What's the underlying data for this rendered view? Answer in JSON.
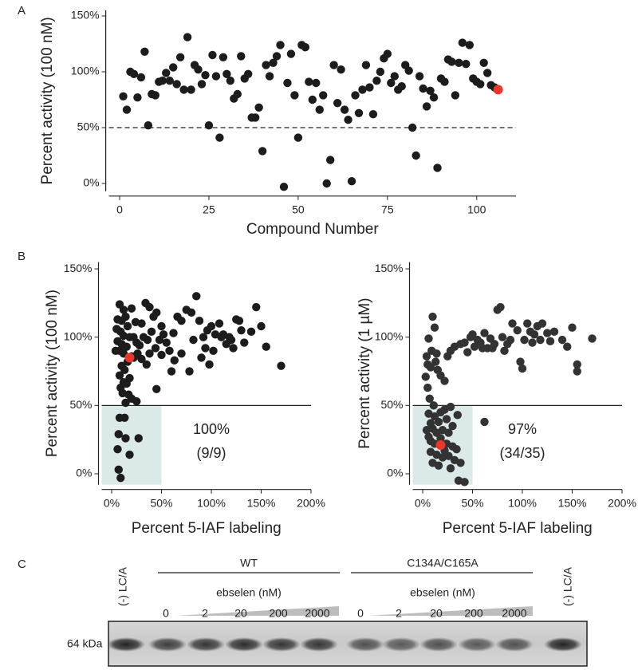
{
  "panel_labels": [
    "A",
    "B",
    "C"
  ],
  "chart_data": [
    {
      "type": "scatter",
      "ylabel": "Percent activity (100 nM)",
      "xlabel": "Compound Number",
      "xlim": [
        -3,
        111
      ],
      "ylim": [
        -7,
        155
      ],
      "xticks": [
        0,
        25,
        50,
        75,
        100
      ],
      "yticks": [
        {
          "value": 0,
          "label": "0%"
        },
        {
          "value": 50,
          "label": "50%"
        },
        {
          "value": 100,
          "label": "100%"
        },
        {
          "value": 150,
          "label": "150%"
        }
      ],
      "reference_line": {
        "y": 50,
        "style": "dashed"
      },
      "series": [
        {
          "color": "#1c1c1c",
          "x": [
            1,
            2,
            3,
            4,
            5,
            6,
            7,
            8,
            9,
            10,
            11,
            12,
            13,
            14,
            15,
            16,
            17,
            18,
            19,
            20,
            21,
            22,
            23,
            24,
            25,
            26,
            27,
            28,
            29,
            30,
            31,
            32,
            33,
            34,
            35,
            36,
            37,
            38,
            39,
            40,
            41,
            42,
            43,
            44,
            45,
            46,
            47,
            48,
            49,
            50,
            51,
            52,
            53,
            54,
            55,
            56,
            57,
            58,
            59,
            60,
            61,
            62,
            63,
            64,
            65,
            66,
            67,
            68,
            69,
            70,
            71,
            72,
            73,
            74,
            75,
            76,
            77,
            78,
            79,
            80,
            81,
            82,
            83,
            84,
            85,
            86,
            87,
            88,
            89,
            90,
            91,
            92,
            93,
            94,
            95,
            96,
            97,
            98,
            99,
            100,
            101,
            102,
            103,
            104,
            105
          ],
          "y": [
            78,
            66,
            100,
            98,
            77,
            95,
            118,
            52,
            80,
            79,
            91,
            92,
            99,
            92,
            104,
            89,
            113,
            84,
            131,
            84,
            106,
            102,
            89,
            97,
            52,
            115,
            96,
            41,
            113,
            98,
            92,
            76,
            80,
            114,
            94,
            98,
            59,
            59,
            68,
            29,
            106,
            96,
            108,
            114,
            124,
            -3,
            90,
            116,
            79,
            41,
            124,
            122,
            91,
            75,
            90,
            66,
            79,
            0,
            21,
            106,
            72,
            102,
            66,
            57,
            2,
            79,
            63,
            84,
            106,
            86,
            62,
            92,
            100,
            112,
            116,
            90,
            96,
            84,
            87,
            106,
            101,
            50,
            25,
            96,
            85,
            69,
            83,
            77,
            14,
            94,
            91,
            111,
            109,
            79,
            108,
            126,
            107,
            124,
            94,
            91,
            89,
            108,
            99,
            88,
            86
          ]
        },
        {
          "color": "#e8372c",
          "x": [
            106
          ],
          "y": [
            84
          ]
        }
      ]
    },
    {
      "type": "scatter",
      "ylabel": "Percent activity (100 nM)",
      "xlabel": "Percent 5-IAF labeling",
      "xlim": [
        -10,
        200
      ],
      "ylim": [
        -8,
        155
      ],
      "xticks": [
        {
          "value": 0,
          "label": "0%"
        },
        {
          "value": 50,
          "label": "50%"
        },
        {
          "value": 100,
          "label": "100%"
        },
        {
          "value": 150,
          "label": "150%"
        },
        {
          "value": 200,
          "label": "200%"
        }
      ],
      "yticks": [
        {
          "value": 0,
          "label": "0%"
        },
        {
          "value": 50,
          "label": "50%"
        },
        {
          "value": 100,
          "label": "100%"
        },
        {
          "value": 150,
          "label": "150%"
        }
      ],
      "reference_line": {
        "y": 50,
        "style": "solid"
      },
      "shaded_region": {
        "x_max": 50,
        "y_max": 50,
        "color": "#dbe9e9"
      },
      "annotation": [
        "100%",
        "(9/9)"
      ],
      "series": [
        {
          "color": "#1c1c1c",
          "x": [
            8,
            13,
            7,
            14,
            27,
            6,
            18,
            7,
            9,
            8,
            12,
            6,
            10,
            14,
            20,
            16,
            5,
            9,
            12,
            18,
            6,
            10,
            15,
            4,
            8,
            12,
            20,
            22,
            16,
            10,
            13,
            8,
            18,
            12,
            15,
            9,
            11,
            17,
            20,
            25,
            14,
            22,
            25,
            28,
            26,
            24,
            30,
            34,
            38,
            42,
            45,
            50,
            32,
            36,
            40,
            48,
            52,
            55,
            44,
            38,
            30,
            35,
            50,
            58,
            62,
            66,
            70,
            75,
            80,
            85,
            88,
            92,
            96,
            100,
            104,
            108,
            112,
            115,
            118,
            122,
            125,
            130,
            133,
            140,
            145,
            150,
            155,
            170,
            60,
            70,
            78,
            90,
            98,
            102,
            110,
            120,
            128,
            45,
            63,
            82,
            94
          ],
          "y": [
            41,
            41,
            29,
            26,
            26,
            18,
            14,
            3,
            -3,
            124,
            120,
            113,
            112,
            115,
            121,
            108,
            106,
            104,
            101,
            100,
            97,
            95,
            93,
            90,
            90,
            88,
            86,
            85,
            82,
            79,
            76,
            72,
            70,
            67,
            66,
            63,
            59,
            58,
            55,
            53,
            52,
            100,
            96,
            94,
            88,
            111,
            110,
            125,
            122,
            115,
            118,
            108,
            100,
            98,
            104,
            98,
            102,
            96,
            92,
            88,
            84,
            80,
            87,
            90,
            103,
            115,
            112,
            120,
            118,
            130,
            112,
            100,
            105,
            108,
            102,
            110,
            102,
            95,
            100,
            92,
            113,
            105,
            96,
            104,
            122,
            108,
            93,
            79,
            75,
            88,
            75,
            85,
            80,
            90,
            100,
            98,
            112,
            62,
            83,
            98,
            92
          ]
        },
        {
          "color": "#e8372c",
          "x": [
            18
          ],
          "y": [
            85
          ]
        }
      ]
    },
    {
      "type": "scatter",
      "ylabel": "Percent activity (1 µM)",
      "xlabel": "Percent 5-IAF labeling",
      "xlim": [
        -10,
        200
      ],
      "ylim": [
        -8,
        155
      ],
      "xticks": [
        {
          "value": 0,
          "label": "0%"
        },
        {
          "value": 50,
          "label": "50%"
        },
        {
          "value": 100,
          "label": "100%"
        },
        {
          "value": 150,
          "label": "150%"
        },
        {
          "value": 200,
          "label": "200%"
        }
      ],
      "yticks": [
        {
          "value": 0,
          "label": "0%"
        },
        {
          "value": 50,
          "label": "50%"
        },
        {
          "value": 100,
          "label": "100%"
        },
        {
          "value": 150,
          "label": "150%"
        }
      ],
      "reference_line": {
        "y": 50,
        "style": "solid"
      },
      "shaded_region": {
        "x_max": 50,
        "y_max": 50,
        "color": "#dbe9e9"
      },
      "annotation": [
        "97%",
        "(34/35)"
      ],
      "series": [
        {
          "color": "#333333",
          "x": [
            8,
            12,
            18,
            22,
            28,
            35,
            10,
            14,
            20,
            26,
            6,
            8,
            12,
            18,
            24,
            30,
            34,
            8,
            14,
            20,
            26,
            32,
            38,
            10,
            16,
            28,
            36,
            42,
            6,
            16,
            24,
            30,
            4,
            22,
            62,
            5,
            3,
            7,
            10,
            12,
            6,
            9,
            4,
            13,
            8,
            15,
            18,
            22,
            25,
            28,
            32,
            38,
            42,
            45,
            48,
            52,
            55,
            58,
            62,
            65,
            68,
            72,
            75,
            78,
            80,
            82,
            85,
            88,
            90,
            95,
            98,
            100,
            102,
            105,
            108,
            110,
            112,
            115,
            118,
            120,
            125,
            128,
            132,
            140,
            145,
            150,
            155,
            155,
            170,
            50,
            60,
            70,
            5,
            11,
            14
          ],
          "y": [
            37,
            42,
            45,
            47,
            49,
            43,
            33,
            30,
            32,
            30,
            27,
            24,
            22,
            26,
            22,
            20,
            18,
            16,
            14,
            12,
            13,
            10,
            8,
            8,
            6,
            4,
            -5,
            -6,
            44,
            38,
            40,
            35,
            32,
            17,
            38,
            80,
            71,
            55,
            115,
            107,
            99,
            90,
            86,
            82,
            78,
            76,
            72,
            68,
            86,
            90,
            93,
            95,
            96,
            89,
            100,
            93,
            98,
            96,
            103,
            92,
            99,
            95,
            120,
            122,
            100,
            90,
            95,
            98,
            110,
            105,
            82,
            77,
            98,
            110,
            104,
            96,
            102,
            108,
            98,
            110,
            103,
            97,
            104,
            98,
            93,
            107,
            80,
            75,
            99,
            102,
            92,
            92,
            63,
            50,
            88
          ]
        },
        {
          "color": "#e8372c",
          "x": [
            18
          ],
          "y": [
            21
          ]
        }
      ]
    }
  ],
  "gel": {
    "control_label": "(-) LC/A",
    "groups": [
      {
        "name": "WT",
        "treatment": "ebselen (nM)",
        "doses": [
          "0",
          "2",
          "20",
          "200",
          "2000"
        ]
      },
      {
        "name": "C134A/C165A",
        "treatment": "ebselen (nM)",
        "doses": [
          "0",
          "2",
          "20",
          "200",
          "2000"
        ]
      }
    ],
    "band_label": "64 kDa"
  }
}
